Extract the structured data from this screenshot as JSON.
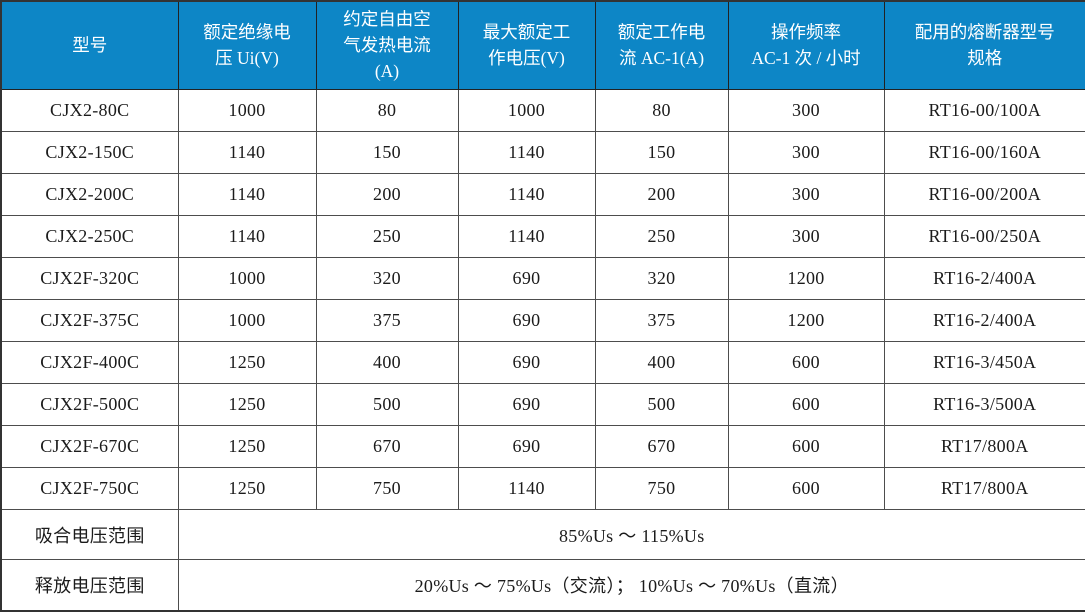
{
  "theme": {
    "header_bg": "#0d86c6",
    "header_text": "#ffffff",
    "body_bg": "#ffffff",
    "body_text": "#1b1b1b",
    "grid_line": "#4d4d4d",
    "outer_border": "#333333"
  },
  "table": {
    "columns": [
      "型号",
      "额定绝缘电\n压 Ui(V)",
      "约定自由空\n气发热电流\n(A)",
      "最大额定工\n作电压(V)",
      "额定工作电\n流 AC-1(A)",
      "操作频率\nAC-1 次 / 小时",
      "配用的熔断器型号\n规格"
    ],
    "rows": [
      [
        "CJX2-80C",
        "1000",
        "80",
        "1000",
        "80",
        "300",
        "RT16-00/100A"
      ],
      [
        "CJX2-150C",
        "1140",
        "150",
        "1140",
        "150",
        "300",
        "RT16-00/160A"
      ],
      [
        "CJX2-200C",
        "1140",
        "200",
        "1140",
        "200",
        "300",
        "RT16-00/200A"
      ],
      [
        "CJX2-250C",
        "1140",
        "250",
        "1140",
        "250",
        "300",
        "RT16-00/250A"
      ],
      [
        "CJX2F-320C",
        "1000",
        "320",
        "690",
        "320",
        "1200",
        "RT16-2/400A"
      ],
      [
        "CJX2F-375C",
        "1000",
        "375",
        "690",
        "375",
        "1200",
        "RT16-2/400A"
      ],
      [
        "CJX2F-400C",
        "1250",
        "400",
        "690",
        "400",
        "600",
        "RT16-3/450A"
      ],
      [
        "CJX2F-500C",
        "1250",
        "500",
        "690",
        "500",
        "600",
        "RT16-3/500A"
      ],
      [
        "CJX2F-670C",
        "1250",
        "670",
        "690",
        "670",
        "600",
        "RT17/800A"
      ],
      [
        "CJX2F-750C",
        "1250",
        "750",
        "1140",
        "750",
        "600",
        "RT17/800A"
      ]
    ],
    "footer_rows": [
      {
        "label": "吸合电压范围",
        "value": "85%Us ～ 115%Us"
      },
      {
        "label": "释放电压范围",
        "value": "20%Us ～ 75%Us（交流）； 10%Us ～ 70%Us（直流）"
      }
    ]
  }
}
